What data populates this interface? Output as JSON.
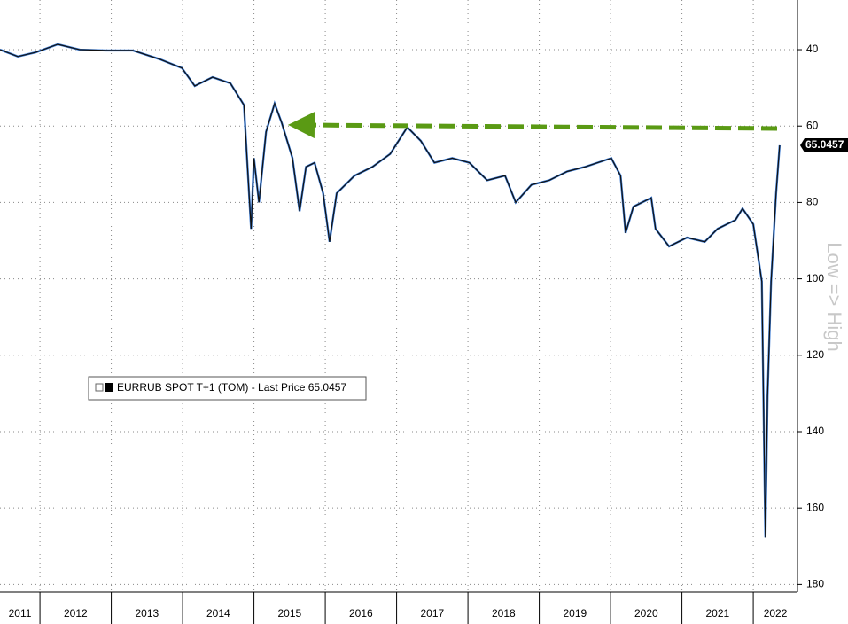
{
  "chart_data": {
    "type": "line",
    "categories": [
      "2011",
      "2012",
      "2013",
      "2014",
      "2015",
      "2016",
      "2017",
      "2018",
      "2019",
      "2020",
      "2021",
      "2022"
    ],
    "xticks": [
      2012,
      2013,
      2014,
      2015,
      2016,
      2017,
      2018,
      2019,
      2020,
      2021,
      2022
    ],
    "xlim": [
      2011.44,
      2022.62
    ],
    "ylim": [
      27,
      182
    ],
    "y_inverted": true,
    "yticks": [
      40,
      60,
      80,
      100,
      120,
      140,
      160,
      180
    ],
    "y_axis_label": "Low => High",
    "grid": true,
    "x": [
      2011.44,
      2011.69,
      2011.94,
      2012.25,
      2012.56,
      2012.93,
      2013.3,
      2013.68,
      2013.99,
      2014.17,
      2014.42,
      2014.67,
      2014.86,
      2014.96,
      2015.0,
      2015.07,
      2015.17,
      2015.29,
      2015.39,
      2015.54,
      2015.64,
      2015.73,
      2015.85,
      2015.97,
      2016.06,
      2016.16,
      2016.41,
      2016.66,
      2016.91,
      2017.15,
      2017.34,
      2017.53,
      2017.78,
      2018.02,
      2018.27,
      2018.52,
      2018.67,
      2018.89,
      2019.14,
      2019.39,
      2019.64,
      2020.01,
      2020.14,
      2020.21,
      2020.32,
      2020.57,
      2020.63,
      2020.82,
      2021.07,
      2021.32,
      2021.5,
      2021.75,
      2021.85,
      2022.0,
      2022.12,
      2022.17,
      2022.2,
      2022.25,
      2022.32,
      2022.37
    ],
    "series": [
      {
        "name": "EURRUB SPOT T+1 (TOM) - Last Price 65.0457",
        "color": "#111111",
        "values": [
          40.0,
          41.8,
          40.7,
          38.6,
          40.0,
          40.2,
          40.2,
          42.5,
          44.8,
          49.5,
          47.2,
          48.8,
          54.5,
          86.9,
          68.4,
          80.0,
          61.5,
          54.1,
          59.2,
          68.4,
          82.3,
          70.7,
          69.6,
          77.6,
          90.3,
          77.6,
          73.0,
          70.7,
          67.3,
          60.3,
          63.9,
          69.6,
          68.4,
          69.6,
          74.2,
          73.0,
          80.0,
          75.4,
          74.2,
          71.9,
          70.7,
          68.4,
          73.0,
          88.0,
          81.1,
          78.8,
          86.9,
          91.5,
          89.2,
          90.3,
          86.9,
          84.6,
          81.6,
          85.7,
          100.7,
          167.7,
          130.8,
          100.7,
          77.6,
          65.0457
        ],
        "last_value_label": "65.0457"
      }
    ]
  }
}
